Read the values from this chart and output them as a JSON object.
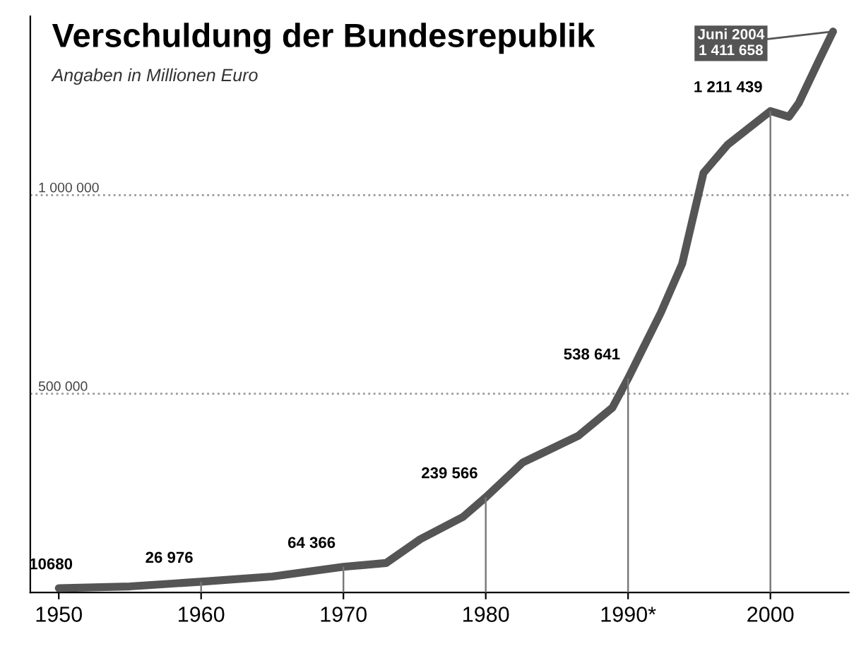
{
  "chart_data": {
    "type": "line",
    "title": "Verschuldung der Bundesrepublik",
    "subtitle": "Angaben in Millionen Euro",
    "series": [
      {
        "color": "#555555",
        "x": [
          1950,
          1955,
          1960,
          1965,
          1970,
          1973,
          1975.4,
          1978.4,
          1980,
          1982.6,
          1986.5,
          1988.9,
          1990,
          1992.3,
          1993.8,
          1995.3,
          1997,
          2000,
          2001.3,
          2002,
          2003.4,
          2004.4
        ],
        "values": [
          10680,
          15000,
          26976,
          40000,
          64366,
          74000,
          134000,
          190000,
          239566,
          327000,
          394000,
          465000,
          538641,
          704000,
          827000,
          1056000,
          1127000,
          1211439,
          1197000,
          1232000,
          1338000,
          1411658
        ]
      },
      {
        "type": "bar",
        "color": "#777777",
        "x": [
          1960,
          1970,
          1980,
          1990,
          2000
        ],
        "values": [
          26976,
          64366,
          239566,
          538641,
          1211439
        ]
      }
    ],
    "annotations": [
      {
        "text": "10680",
        "x": 1950,
        "y": 10680
      },
      {
        "text": "26 976",
        "x": 1960,
        "y": 26976
      },
      {
        "text": "64 366",
        "x": 1970,
        "y": 64366
      },
      {
        "text": "239 566",
        "x": 1980,
        "y": 239566
      },
      {
        "text": "538 641",
        "x": 1990,
        "y": 538641
      },
      {
        "text": "1 211 439",
        "x": 2000,
        "y": 1211439
      },
      {
        "text": "Juni 2004\n1 411 658",
        "x": 2004.4,
        "y": 1411658
      }
    ],
    "xlim": [
      1948,
      2005.5
    ],
    "ylim": [
      0,
      1450000
    ],
    "xticks": [
      1950,
      1960,
      1970,
      1980,
      {
        "value": 1990,
        "label": "1990*"
      },
      2000
    ],
    "yticks": [
      {
        "value": 500000,
        "label": "500 000"
      },
      {
        "value": 1000000,
        "label": "1 000 000"
      }
    ],
    "grid": "y",
    "line_style": "solid",
    "marker": "none",
    "legend": false
  }
}
